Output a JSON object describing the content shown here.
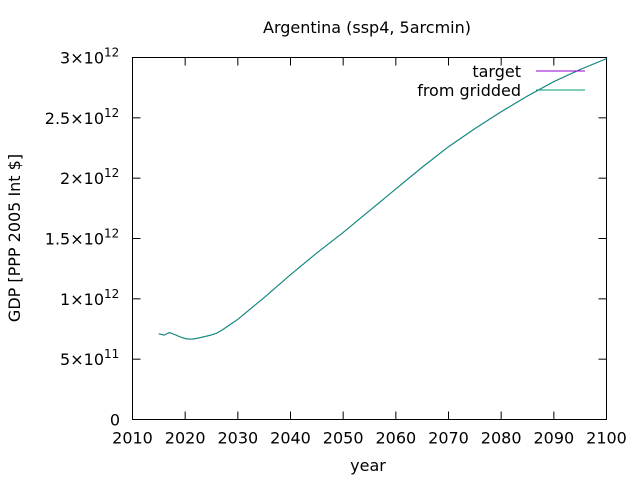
{
  "chart_data": {
    "type": "line",
    "title": "Argentina (ssp4, 5arcmin)",
    "xlabel": "year",
    "ylabel": "GDP [PPP 2005 Int $]",
    "xlim": [
      2010,
      2100
    ],
    "ylim": [
      0,
      3000000000000
    ],
    "grid": false,
    "legend_position": "top-right",
    "x_ticks": [
      {
        "value": 2010,
        "label": "2010"
      },
      {
        "value": 2020,
        "label": "2020"
      },
      {
        "value": 2030,
        "label": "2030"
      },
      {
        "value": 2040,
        "label": "2040"
      },
      {
        "value": 2050,
        "label": "2050"
      },
      {
        "value": 2060,
        "label": "2060"
      },
      {
        "value": 2070,
        "label": "2070"
      },
      {
        "value": 2080,
        "label": "2080"
      },
      {
        "value": 2090,
        "label": "2090"
      },
      {
        "value": 2100,
        "label": "2100"
      }
    ],
    "y_ticks": [
      {
        "value": 0,
        "mantissa": "0",
        "exponent": ""
      },
      {
        "value": 500000000000,
        "mantissa": "5×10",
        "exponent": "11"
      },
      {
        "value": 1000000000000,
        "mantissa": "1×10",
        "exponent": "12"
      },
      {
        "value": 1500000000000,
        "mantissa": "1.5×10",
        "exponent": "12"
      },
      {
        "value": 2000000000000,
        "mantissa": "2×10",
        "exponent": "12"
      },
      {
        "value": 2500000000000,
        "mantissa": "2.5×10",
        "exponent": "12"
      },
      {
        "value": 3000000000000,
        "mantissa": "3×10",
        "exponent": "12"
      }
    ],
    "series": [
      {
        "name": "target",
        "color": "#9400d3",
        "x": [
          2015,
          2016,
          2017,
          2018,
          2019,
          2020,
          2021,
          2022,
          2023,
          2024,
          2025,
          2026,
          2027,
          2028,
          2030,
          2035,
          2040,
          2045,
          2050,
          2055,
          2060,
          2065,
          2070,
          2075,
          2080,
          2085,
          2090,
          2095,
          2100
        ],
        "y": [
          710000000000,
          700000000000,
          720000000000,
          705000000000,
          685000000000,
          670000000000,
          665000000000,
          670000000000,
          680000000000,
          690000000000,
          700000000000,
          715000000000,
          740000000000,
          770000000000,
          830000000000,
          1010000000000,
          1200000000000,
          1380000000000,
          1550000000000,
          1730000000000,
          1910000000000,
          2090000000000,
          2260000000000,
          2410000000000,
          2550000000000,
          2680000000000,
          2800000000000,
          2900000000000,
          2990000000000
        ]
      },
      {
        "name": "from gridded",
        "color": "#009e73",
        "x": [
          2015,
          2016,
          2017,
          2018,
          2019,
          2020,
          2021,
          2022,
          2023,
          2024,
          2025,
          2026,
          2027,
          2028,
          2030,
          2035,
          2040,
          2045,
          2050,
          2055,
          2060,
          2065,
          2070,
          2075,
          2080,
          2085,
          2090,
          2095,
          2100
        ],
        "y": [
          712000000000,
          698000000000,
          722000000000,
          704000000000,
          686000000000,
          671000000000,
          666000000000,
          671000000000,
          681000000000,
          691000000000,
          701000000000,
          716000000000,
          741000000000,
          771000000000,
          831000000000,
          1011000000000,
          1201000000000,
          1381000000000,
          1551000000000,
          1731000000000,
          1911000000000,
          2091000000000,
          2261000000000,
          2411000000000,
          2551000000000,
          2681000000000,
          2801000000000,
          2901000000000,
          2991000000000
        ]
      }
    ]
  }
}
